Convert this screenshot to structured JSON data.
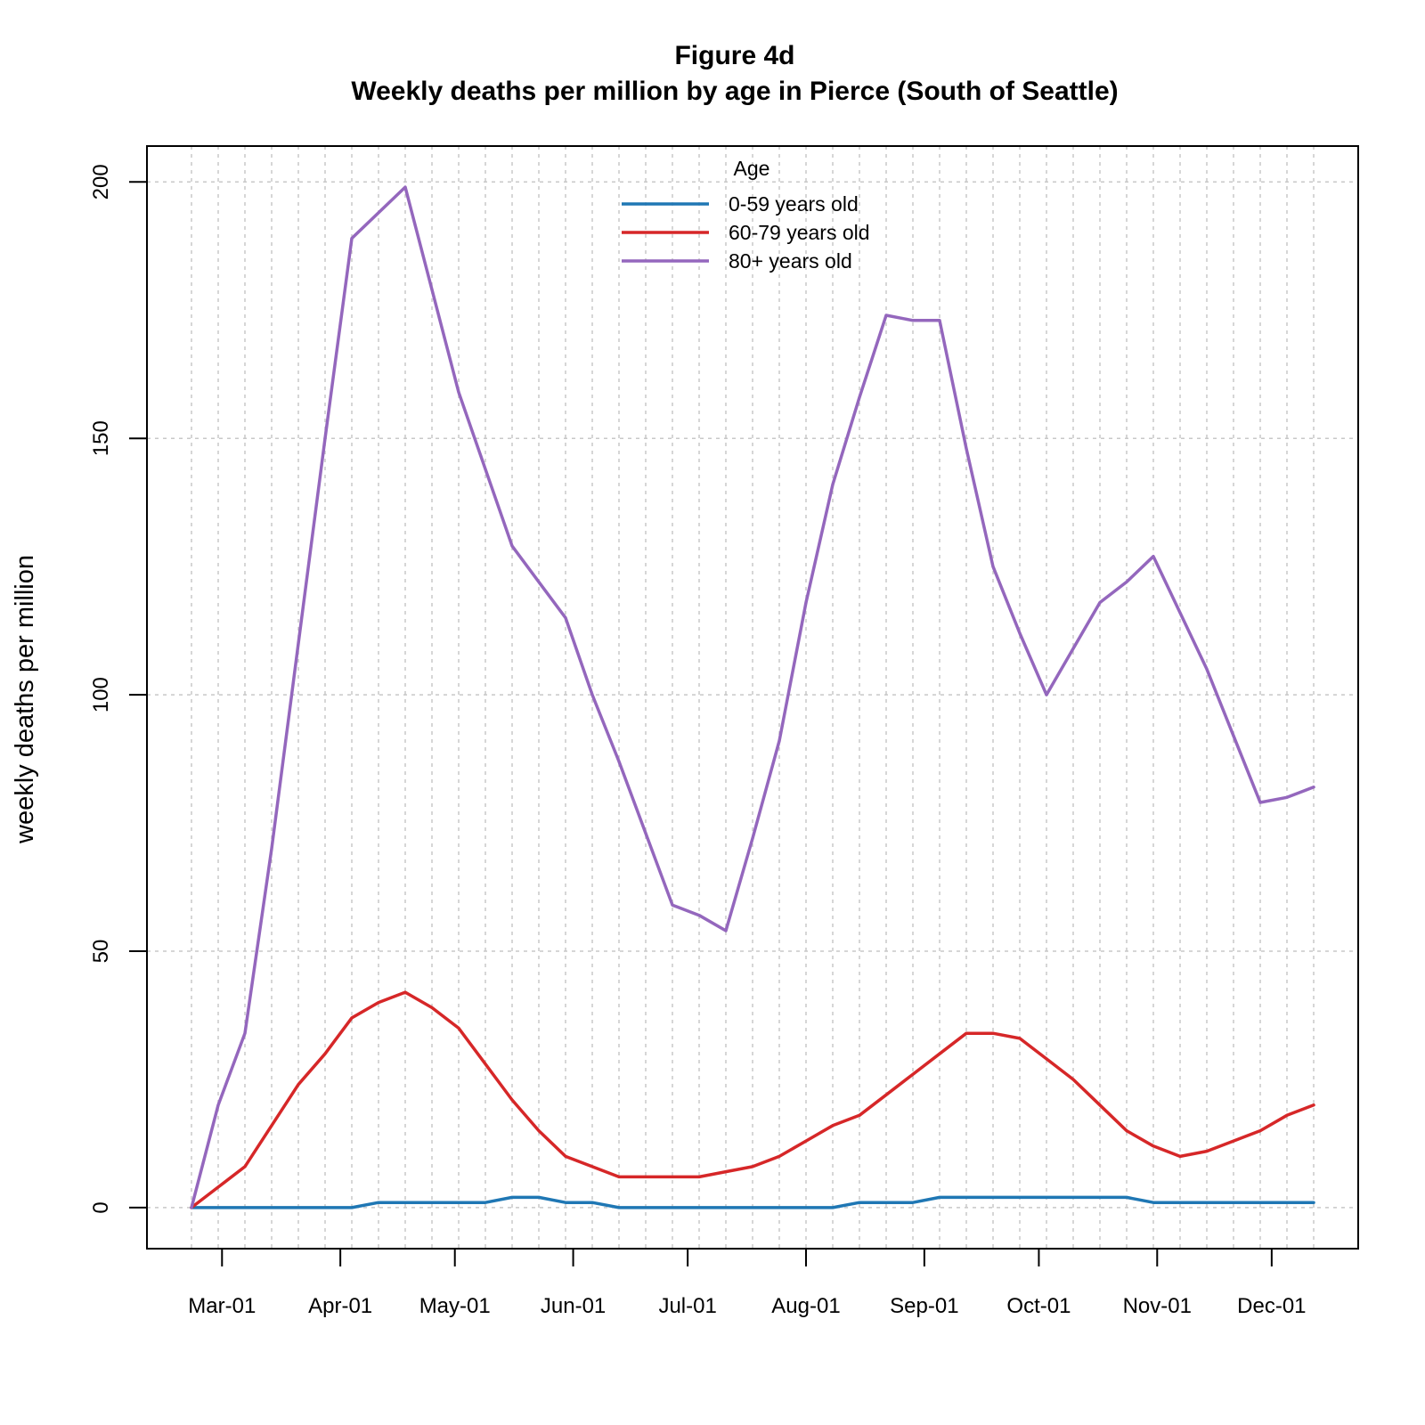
{
  "chart_data": {
    "type": "line",
    "title": "Figure 4d",
    "subtitle": "Weekly deaths per million by age in Pierce (South of Seattle)",
    "xlabel": "",
    "ylabel": "weekly deaths per million",
    "x": [
      "2020-02-22",
      "2020-02-29",
      "2020-03-07",
      "2020-03-14",
      "2020-03-21",
      "2020-03-28",
      "2020-04-04",
      "2020-04-11",
      "2020-04-18",
      "2020-04-25",
      "2020-05-02",
      "2020-05-09",
      "2020-05-16",
      "2020-05-23",
      "2020-05-30",
      "2020-06-06",
      "2020-06-13",
      "2020-06-20",
      "2020-06-27",
      "2020-07-04",
      "2020-07-11",
      "2020-07-18",
      "2020-07-25",
      "2020-08-01",
      "2020-08-08",
      "2020-08-15",
      "2020-08-22",
      "2020-08-29",
      "2020-09-05",
      "2020-09-12",
      "2020-09-19",
      "2020-09-26",
      "2020-10-03",
      "2020-10-10",
      "2020-10-17",
      "2020-10-24",
      "2020-10-31",
      "2020-11-07",
      "2020-11-14",
      "2020-11-21",
      "2020-11-28",
      "2020-12-05",
      "2020-12-12"
    ],
    "x_ticks": [
      "Mar-01",
      "Apr-01",
      "May-01",
      "Jun-01",
      "Jul-01",
      "Aug-01",
      "Sep-01",
      "Oct-01",
      "Nov-01",
      "Dec-01"
    ],
    "x_tick_dates": [
      "2020-03-01",
      "2020-04-01",
      "2020-05-01",
      "2020-06-01",
      "2020-07-01",
      "2020-08-01",
      "2020-09-01",
      "2020-10-01",
      "2020-11-01",
      "2020-12-01"
    ],
    "y_ticks": [
      0,
      50,
      100,
      150,
      200
    ],
    "ylim": [
      -8,
      207
    ],
    "grid": true,
    "legend_title": "Age",
    "legend_position": "top-center",
    "series": [
      {
        "name": "0-59 years old",
        "color": "#1f77b4",
        "values": [
          0,
          0,
          0,
          0,
          0,
          0,
          0,
          1,
          1,
          1,
          1,
          1,
          2,
          2,
          1,
          1,
          0,
          0,
          0,
          0,
          0,
          0,
          0,
          0,
          0,
          1,
          1,
          1,
          2,
          2,
          2,
          2,
          2,
          2,
          2,
          2,
          1,
          1,
          1,
          1,
          1,
          1,
          1
        ]
      },
      {
        "name": "60-79 years old",
        "color": "#d62728",
        "values": [
          0,
          4,
          8,
          16,
          24,
          30,
          37,
          40,
          42,
          39,
          35,
          28,
          21,
          15,
          10,
          8,
          6,
          6,
          6,
          6,
          7,
          8,
          10,
          13,
          16,
          18,
          22,
          26,
          30,
          34,
          34,
          33,
          29,
          25,
          20,
          15,
          12,
          10,
          11,
          13,
          15,
          18,
          20
        ]
      },
      {
        "name": "80+ years old",
        "color": "#9467bd",
        "values": [
          0,
          20,
          34,
          70,
          110,
          150,
          189,
          194,
          199,
          179,
          159,
          144,
          129,
          122,
          115,
          100,
          87,
          73,
          59,
          57,
          54,
          72,
          91,
          118,
          141,
          158,
          174,
          173,
          173,
          148,
          125,
          112,
          100,
          109,
          118,
          122,
          127,
          116,
          105,
          92,
          79,
          80,
          82
        ]
      }
    ]
  }
}
